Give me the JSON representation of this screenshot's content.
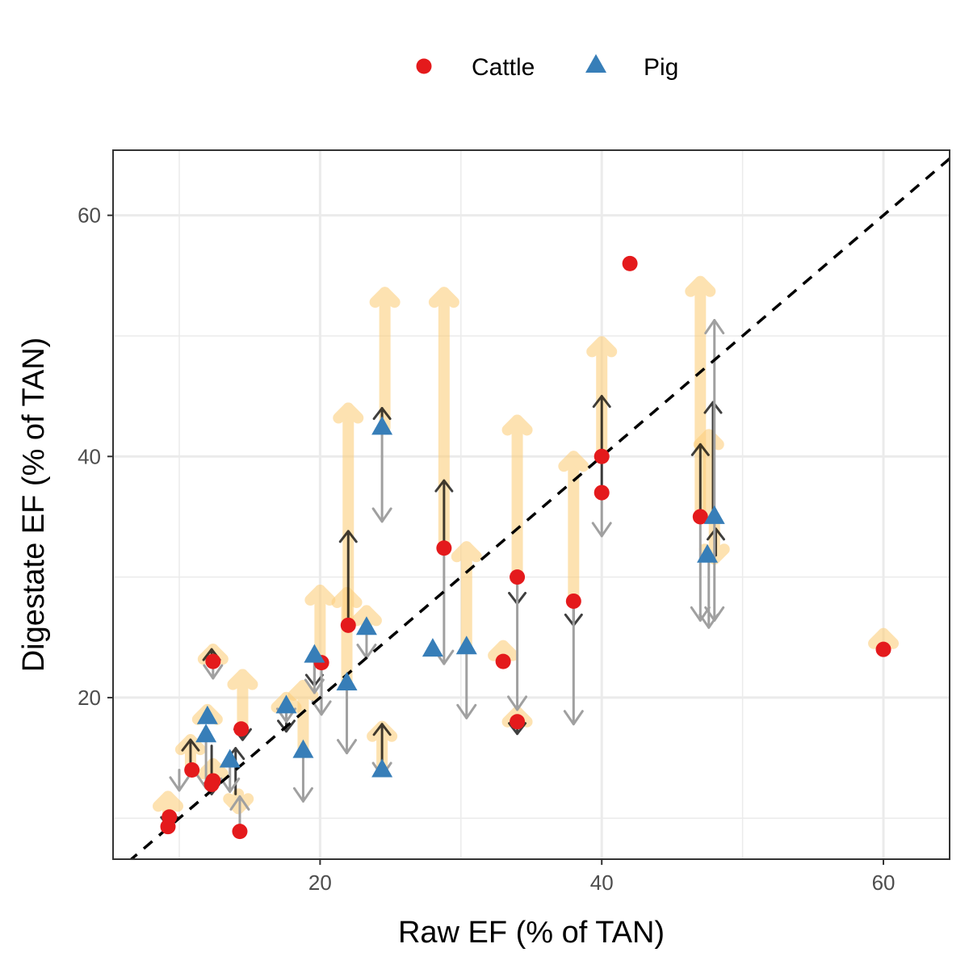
{
  "chart_data": {
    "type": "scatter",
    "xlabel": "Raw EF (% of TAN)",
    "ylabel": "Digestate EF (% of TAN)",
    "xlim": [
      5.3,
      64.7
    ],
    "ylim": [
      6.6,
      65.4
    ],
    "xticks": [
      20,
      40,
      60
    ],
    "yticks": [
      20,
      40,
      60
    ],
    "x_minor": [
      10,
      30,
      50
    ],
    "y_minor": [
      10,
      30,
      50
    ],
    "grid": true,
    "legend_position": "top",
    "reference_line": "y = x",
    "legend": [
      {
        "name": "Cattle",
        "shape": "circle",
        "color": "#e41a1c"
      },
      {
        "name": "Pig",
        "shape": "triangle",
        "color": "#377eb8"
      }
    ],
    "colors": {
      "cattle": "#e41a1c",
      "pig": "#377eb8",
      "orange_arrow": "#fdcf7e",
      "black_arrow": "#000000",
      "gray_arrow": "#a0a0a0",
      "grid": "#ebebeb",
      "tick_text": "#4d4d4d"
    },
    "series": [
      {
        "name": "Cattle",
        "points": [
          [
            9.2,
            9.3
          ],
          [
            9.3,
            10.1
          ],
          [
            10.9,
            14.0
          ],
          [
            12.3,
            12.8
          ],
          [
            12.4,
            13.1
          ],
          [
            12.4,
            23.0
          ],
          [
            14.3,
            8.9
          ],
          [
            14.4,
            17.4
          ],
          [
            20.1,
            22.9
          ],
          [
            22.0,
            26.0
          ],
          [
            28.8,
            32.4
          ],
          [
            33.0,
            23.0
          ],
          [
            34.0,
            30.0
          ],
          [
            34.0,
            18.0
          ],
          [
            38.0,
            28.0
          ],
          [
            40.0,
            40.0
          ],
          [
            40.0,
            37.0
          ],
          [
            42.0,
            56.0
          ],
          [
            47.0,
            35.0
          ],
          [
            60.0,
            24.0
          ]
        ]
      },
      {
        "name": "Pig",
        "points": [
          [
            11.9,
            16.9
          ],
          [
            12.0,
            18.4
          ],
          [
            13.6,
            14.8
          ],
          [
            17.6,
            19.3
          ],
          [
            18.8,
            15.6
          ],
          [
            19.6,
            23.5
          ],
          [
            21.9,
            21.2
          ],
          [
            23.3,
            25.8
          ],
          [
            24.4,
            42.4
          ],
          [
            24.4,
            14.0
          ],
          [
            28.0,
            24.0
          ],
          [
            30.4,
            24.2
          ],
          [
            47.5,
            31.8
          ],
          [
            48.0,
            35.0
          ]
        ]
      }
    ],
    "arrows": [
      {
        "kind": "orange",
        "x": 9.2,
        "y_from": 9.3,
        "y_to": 11.8
      },
      {
        "kind": "orange",
        "x": 10.8,
        "y_from": 14.0,
        "y_to": 16.5
      },
      {
        "kind": "orange",
        "x": 12.0,
        "y_from": 18.4,
        "y_to": 19.0
      },
      {
        "kind": "orange",
        "x": 12.4,
        "y_from": 23.0,
        "y_to": 24.0
      },
      {
        "kind": "orange",
        "x": 12.4,
        "y_from": 13.1,
        "y_to": 14.5
      },
      {
        "kind": "orange",
        "x": 14.5,
        "y_from": 17.4,
        "y_to": 21.9
      },
      {
        "kind": "orange",
        "x": 14.2,
        "y_from": 12.0,
        "y_to": 10.8
      },
      {
        "kind": "orange",
        "x": 17.6,
        "y_from": 19.3,
        "y_to": 20.0
      },
      {
        "kind": "orange",
        "x": 18.8,
        "y_from": 15.6,
        "y_to": 21.0
      },
      {
        "kind": "orange",
        "x": 20.0,
        "y_from": 22.9,
        "y_to": 28.9
      },
      {
        "kind": "orange",
        "x": 21.9,
        "y_from": 21.2,
        "y_to": 28.7
      },
      {
        "kind": "orange",
        "x": 22.0,
        "y_from": 26.0,
        "y_to": 44.0
      },
      {
        "kind": "orange",
        "x": 23.3,
        "y_from": 25.8,
        "y_to": 27.2
      },
      {
        "kind": "orange",
        "x": 24.6,
        "y_from": 42.4,
        "y_to": 53.6
      },
      {
        "kind": "orange",
        "x": 24.4,
        "y_from": 14.0,
        "y_to": 17.6
      },
      {
        "kind": "orange",
        "x": 28.8,
        "y_from": 32.4,
        "y_to": 53.6
      },
      {
        "kind": "orange",
        "x": 30.4,
        "y_from": 24.2,
        "y_to": 32.5
      },
      {
        "kind": "orange",
        "x": 33.0,
        "y_from": 23.0,
        "y_to": 24.3
      },
      {
        "kind": "orange",
        "x": 34.0,
        "y_from": 30.0,
        "y_to": 43.0
      },
      {
        "kind": "orange",
        "x": 34.0,
        "y_from": 18.0,
        "y_to": 18.8
      },
      {
        "kind": "orange",
        "x": 38.0,
        "y_from": 28.0,
        "y_to": 40.0
      },
      {
        "kind": "orange",
        "x": 40.0,
        "y_from": 40.0,
        "y_to": 49.5
      },
      {
        "kind": "orange",
        "x": 47.0,
        "y_from": 35.0,
        "y_to": 54.5
      },
      {
        "kind": "orange",
        "x": 47.6,
        "y_from": 35.0,
        "y_to": 41.8
      },
      {
        "kind": "orange",
        "x": 48.0,
        "y_from": 35.0,
        "y_to": 31.5
      },
      {
        "kind": "orange",
        "x": 60.0,
        "y_from": 24.0,
        "y_to": 25.3
      },
      {
        "kind": "black",
        "x": 9.3,
        "y_from": 10.1,
        "y_to": 9.2
      },
      {
        "kind": "black",
        "x": 10.8,
        "y_from": 14.0,
        "y_to": 16.5
      },
      {
        "kind": "black",
        "x": 12.3,
        "y_from": 23.0,
        "y_to": 24.0
      },
      {
        "kind": "black",
        "x": 12.3,
        "y_from": 16.0,
        "y_to": 12.0
      },
      {
        "kind": "black",
        "x": 14.0,
        "y_from": 12.0,
        "y_to": 15.8
      },
      {
        "kind": "black",
        "x": 14.5,
        "y_from": 17.4,
        "y_to": 16.5
      },
      {
        "kind": "black",
        "x": 17.6,
        "y_from": 19.3,
        "y_to": 17.2
      },
      {
        "kind": "black",
        "x": 19.6,
        "y_from": 23.5,
        "y_to": 21.0
      },
      {
        "kind": "black",
        "x": 22.0,
        "y_from": 26.0,
        "y_to": 33.8
      },
      {
        "kind": "black",
        "x": 24.4,
        "y_from": 42.4,
        "y_to": 44.0
      },
      {
        "kind": "black",
        "x": 24.4,
        "y_from": 14.0,
        "y_to": 17.8
      },
      {
        "kind": "black",
        "x": 28.8,
        "y_from": 32.4,
        "y_to": 38.0
      },
      {
        "kind": "black",
        "x": 34.0,
        "y_from": 30.0,
        "y_to": 27.8
      },
      {
        "kind": "black",
        "x": 34.0,
        "y_from": 18.0,
        "y_to": 17.0
      },
      {
        "kind": "black",
        "x": 38.0,
        "y_from": 28.0,
        "y_to": 26.0
      },
      {
        "kind": "black",
        "x": 40.0,
        "y_from": 37.0,
        "y_to": 45.0
      },
      {
        "kind": "black",
        "x": 47.0,
        "y_from": 35.0,
        "y_to": 41.0
      },
      {
        "kind": "black",
        "x": 47.9,
        "y_from": 35.0,
        "y_to": 44.5
      },
      {
        "kind": "black",
        "x": 48.1,
        "y_from": 31.8,
        "y_to": 34.0
      },
      {
        "kind": "gray",
        "x": 10.0,
        "y_from": 14.0,
        "y_to": 12.3
      },
      {
        "kind": "gray",
        "x": 11.9,
        "y_from": 16.9,
        "y_to": 12.5
      },
      {
        "kind": "gray",
        "x": 12.4,
        "y_from": 23.0,
        "y_to": 21.6
      },
      {
        "kind": "gray",
        "x": 13.6,
        "y_from": 14.8,
        "y_to": 12.2
      },
      {
        "kind": "gray",
        "x": 14.3,
        "y_from": 8.9,
        "y_to": 11.8
      },
      {
        "kind": "gray",
        "x": 17.6,
        "y_from": 19.3,
        "y_to": 18.0
      },
      {
        "kind": "gray",
        "x": 18.8,
        "y_from": 15.6,
        "y_to": 11.4
      },
      {
        "kind": "gray",
        "x": 19.6,
        "y_from": 23.5,
        "y_to": 20.4
      },
      {
        "kind": "gray",
        "x": 20.1,
        "y_from": 22.9,
        "y_to": 18.6
      },
      {
        "kind": "gray",
        "x": 21.9,
        "y_from": 21.2,
        "y_to": 15.4
      },
      {
        "kind": "gray",
        "x": 23.3,
        "y_from": 25.8,
        "y_to": 23.3
      },
      {
        "kind": "gray",
        "x": 24.4,
        "y_from": 42.4,
        "y_to": 34.6
      },
      {
        "kind": "gray",
        "x": 24.4,
        "y_from": 14.0,
        "y_to": 13.5
      },
      {
        "kind": "gray",
        "x": 28.8,
        "y_from": 32.4,
        "y_to": 22.8
      },
      {
        "kind": "gray",
        "x": 30.4,
        "y_from": 24.2,
        "y_to": 18.3
      },
      {
        "kind": "gray",
        "x": 34.0,
        "y_from": 30.0,
        "y_to": 19.0
      },
      {
        "kind": "gray",
        "x": 38.0,
        "y_from": 28.0,
        "y_to": 17.8
      },
      {
        "kind": "gray",
        "x": 40.0,
        "y_from": 37.0,
        "y_to": 33.4
      },
      {
        "kind": "gray",
        "x": 47.0,
        "y_from": 35.0,
        "y_to": 26.4
      },
      {
        "kind": "gray",
        "x": 47.6,
        "y_from": 31.8,
        "y_to": 25.8
      },
      {
        "kind": "gray",
        "x": 48.0,
        "y_from": 35.0,
        "y_to": 51.3
      },
      {
        "kind": "gray",
        "x": 48.0,
        "y_from": 35.0,
        "y_to": 26.4
      }
    ]
  }
}
